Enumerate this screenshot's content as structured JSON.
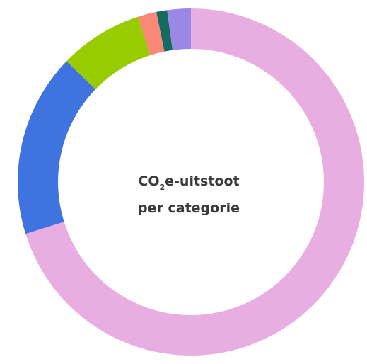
{
  "chart_data": {
    "type": "donut",
    "title": {
      "parts": [
        "CO",
        "2",
        "e-uitstoot"
      ],
      "line2": "per categorie"
    },
    "categories": [
      null,
      null,
      null,
      null,
      null,
      null
    ],
    "values": [
      70.2,
      17.1,
      7.8,
      1.75,
      1,
      2.2
    ],
    "colors": [
      "#e8aee2",
      "#3f73e0",
      "#99cc00",
      "#fb8877",
      "#146b5e",
      "#9b87e6"
    ]
  }
}
